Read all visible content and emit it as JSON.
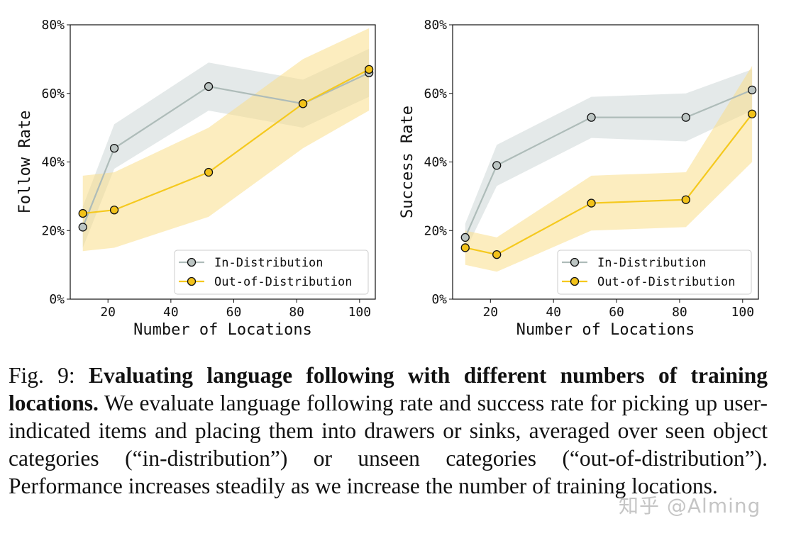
{
  "chart_data": [
    {
      "type": "line",
      "ylabel": "Follow Rate",
      "xlabel": "Number of Locations",
      "xlim": [
        8,
        105
      ],
      "ylim": [
        0,
        80
      ],
      "xticks": [
        "20",
        "40",
        "60",
        "80",
        "100"
      ],
      "yticks": [
        "0%",
        "20%",
        "40%",
        "60%",
        "80%"
      ],
      "legend_position": "lower-right",
      "series": [
        {
          "name": "In-Distribution",
          "x": [
            12,
            22,
            52,
            82,
            103
          ],
          "y": [
            21,
            44,
            62,
            57,
            66
          ],
          "band_low": [
            15,
            38,
            55,
            50,
            59
          ],
          "band_high": [
            27,
            51,
            69,
            64,
            73
          ]
        },
        {
          "name": "Out-of-Distribution",
          "x": [
            12,
            22,
            52,
            82,
            103
          ],
          "y": [
            25,
            26,
            37,
            57,
            67
          ],
          "band_low": [
            14,
            15,
            24,
            44,
            55
          ],
          "band_high": [
            36,
            37,
            50,
            70,
            79
          ]
        }
      ]
    },
    {
      "type": "line",
      "ylabel": "Success Rate",
      "xlabel": "Number of Locations",
      "xlim": [
        8,
        105
      ],
      "ylim": [
        0,
        80
      ],
      "xticks": [
        "20",
        "40",
        "60",
        "80",
        "100"
      ],
      "yticks": [
        "0%",
        "20%",
        "40%",
        "60%",
        "80%"
      ],
      "legend_position": "lower-right",
      "series": [
        {
          "name": "In-Distribution",
          "x": [
            12,
            22,
            52,
            82,
            103
          ],
          "y": [
            18,
            39,
            53,
            53,
            61
          ],
          "band_low": [
            14,
            33,
            47,
            46,
            55
          ],
          "band_high": [
            22,
            45,
            59,
            60,
            67
          ]
        },
        {
          "name": "Out-of-Distribution",
          "x": [
            12,
            22,
            52,
            82,
            103
          ],
          "y": [
            15,
            13,
            28,
            29,
            54
          ],
          "band_low": [
            10,
            8,
            20,
            21,
            40
          ],
          "band_high": [
            20,
            18,
            36,
            37,
            68
          ]
        }
      ]
    }
  ],
  "colors": {
    "in_dist_line": "#aebcb9",
    "in_dist_marker": "#bcc5c3",
    "in_dist_band": "#d2dadb",
    "out_dist_line": "#f5c91e",
    "out_dist_marker": "#f2c21a",
    "out_dist_band": "#f9df8b"
  },
  "caption": {
    "fig_label": "Fig. 9: ",
    "bold_title": "Evaluating language following with different numbers of training locations.",
    "body": " We evaluate language following rate and success rate for picking up user-indicated items and placing them into drawers or sinks, averaged over seen object categories (“in-distribution”) or unseen categories (“out-of-distribution”). Performance increases steadily as we increase the number of training locations."
  },
  "watermark": "知乎 @Alming"
}
